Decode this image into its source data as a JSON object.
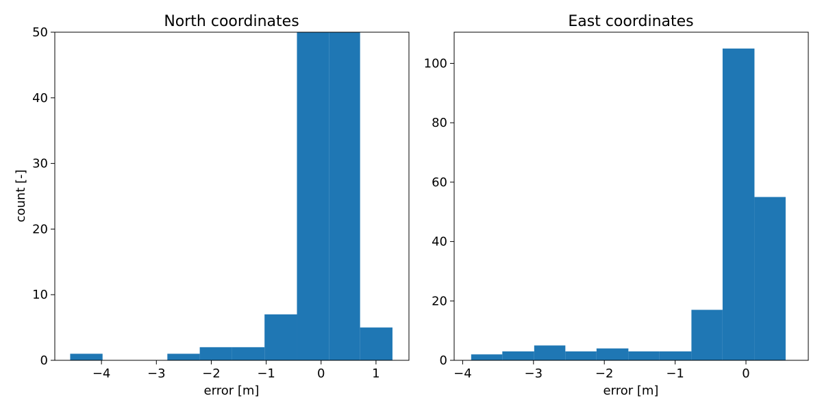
{
  "chart_data": [
    {
      "type": "bar",
      "title": "North coordinates",
      "xlabel": "error [m]",
      "ylabel": "count [-]",
      "xlim": [
        -4.85,
        1.6
      ],
      "ylim": [
        0,
        50
      ],
      "xticks": [
        -4,
        -3,
        -2,
        -1,
        0,
        1
      ],
      "xtick_labels": [
        "−4",
        "−3",
        "−2",
        "−1",
        "0",
        "1"
      ],
      "yticks": [
        0,
        10,
        20,
        30,
        40,
        50
      ],
      "ytick_labels": [
        "0",
        "10",
        "20",
        "30",
        "40",
        "50"
      ],
      "grid": false,
      "color": "#1f77b4",
      "bins": [
        {
          "x0": -4.57,
          "x1": -3.98,
          "value": 1
        },
        {
          "x0": -3.98,
          "x1": -3.39,
          "value": 0
        },
        {
          "x0": -3.39,
          "x1": -2.8,
          "value": 0
        },
        {
          "x0": -2.8,
          "x1": -2.21,
          "value": 1
        },
        {
          "x0": -2.21,
          "x1": -1.62,
          "value": 2
        },
        {
          "x0": -1.62,
          "x1": -1.03,
          "value": 2
        },
        {
          "x0": -1.03,
          "x1": -0.44,
          "value": 7
        },
        {
          "x0": -0.44,
          "x1": 0.15,
          "value": 50
        },
        {
          "x0": 0.15,
          "x1": 0.71,
          "value": 50
        },
        {
          "x0": 0.71,
          "x1": 1.3,
          "value": 5
        }
      ]
    },
    {
      "type": "bar",
      "title": "East coordinates",
      "xlabel": "error [m]",
      "ylabel": "",
      "xlim": [
        -4.12,
        0.88
      ],
      "ylim": [
        0,
        110.5
      ],
      "xticks": [
        -4,
        -3,
        -2,
        -1,
        0
      ],
      "xtick_labels": [
        "−4",
        "−3",
        "−2",
        "−1",
        "0"
      ],
      "yticks": [
        0,
        20,
        40,
        60,
        80,
        100
      ],
      "ytick_labels": [
        "0",
        "20",
        "40",
        "60",
        "80",
        "100"
      ],
      "grid": false,
      "color": "#1f77b4",
      "bins": [
        {
          "x0": -3.88,
          "x1": -3.44,
          "value": 2
        },
        {
          "x0": -3.44,
          "x1": -2.99,
          "value": 3
        },
        {
          "x0": -2.99,
          "x1": -2.55,
          "value": 5
        },
        {
          "x0": -2.55,
          "x1": -2.11,
          "value": 3
        },
        {
          "x0": -2.11,
          "x1": -1.66,
          "value": 4
        },
        {
          "x0": -1.66,
          "x1": -1.22,
          "value": 3
        },
        {
          "x0": -1.22,
          "x1": -0.77,
          "value": 3
        },
        {
          "x0": -0.77,
          "x1": -0.33,
          "value": 17
        },
        {
          "x0": -0.33,
          "x1": 0.12,
          "value": 105
        },
        {
          "x0": 0.12,
          "x1": 0.56,
          "value": 55
        }
      ]
    }
  ]
}
